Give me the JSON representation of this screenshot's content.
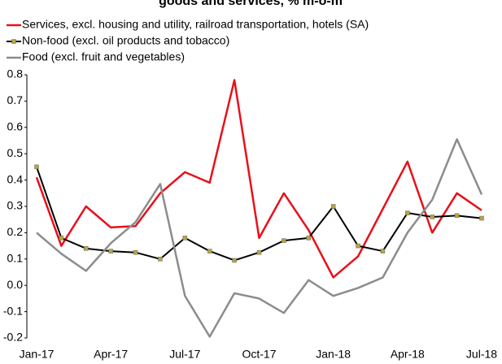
{
  "chart_data": {
    "type": "line",
    "title": "goods and services, % m-o-m",
    "categories": [
      "Jan-17",
      null,
      null,
      "Apr-17",
      null,
      null,
      "Jul-17",
      null,
      null,
      "Oct-17",
      null,
      null,
      "Jan-18",
      null,
      null,
      "Apr-18",
      null,
      null,
      "Jul-18"
    ],
    "series": [
      {
        "name": "Services, excl. housing and utility, railroad transportation, hotels (SA)",
        "color": "#e8101a",
        "marker": false,
        "values": [
          0.41,
          0.15,
          0.3,
          0.22,
          0.225,
          0.35,
          0.43,
          0.39,
          0.78,
          0.18,
          0.35,
          0.21,
          0.03,
          0.11,
          0.29,
          0.47,
          0.2,
          0.35,
          0.285
        ]
      },
      {
        "name": "Non-food (excl. oil products and tobacco)",
        "color": "#000000",
        "marker": true,
        "values": [
          0.45,
          0.18,
          0.14,
          0.13,
          0.125,
          0.1,
          0.18,
          0.13,
          0.095,
          0.125,
          0.17,
          0.18,
          0.3,
          0.15,
          0.13,
          0.275,
          0.26,
          0.265,
          0.255
        ]
      },
      {
        "name": "Food (excl. fruit and vegetables)",
        "color": "#8c8c8c",
        "marker": false,
        "values": [
          0.2,
          0.12,
          0.055,
          0.16,
          0.24,
          0.385,
          -0.04,
          -0.195,
          -0.03,
          -0.05,
          -0.105,
          0.02,
          -0.04,
          -0.01,
          0.03,
          0.2,
          0.325,
          0.555,
          0.345
        ]
      }
    ],
    "ylim": [
      -0.2,
      0.8
    ],
    "yticks": [
      {
        "value": -0.2,
        "label": "-0.2"
      },
      {
        "value": -0.1,
        "label": "-0.1"
      },
      {
        "value": 0,
        "label": "0.0"
      },
      {
        "value": 0.1,
        "label": "0.1"
      },
      {
        "value": 0.2,
        "label": "0.2"
      },
      {
        "value": 0.3,
        "label": "0.3"
      },
      {
        "value": 0.4,
        "label": "0.4"
      },
      {
        "value": 0.5,
        "label": "0.5"
      },
      {
        "value": 0.6,
        "label": "0.6"
      },
      {
        "value": 0.7,
        "label": "0.7"
      },
      {
        "value": 0.8,
        "label": "0.8"
      }
    ],
    "legend": "top-left",
    "grid": false
  }
}
